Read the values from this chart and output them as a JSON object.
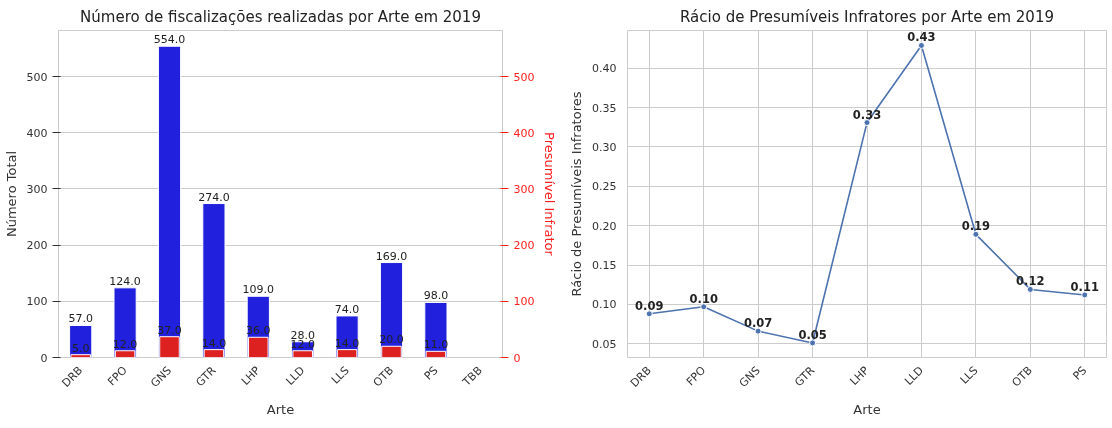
{
  "chart_data": [
    {
      "type": "bar",
      "title": "Número de fiscalizações realizadas por Arte em 2019",
      "xlabel": "Arte",
      "ylabel": "Número Total",
      "y2label": "Presumível Infrator",
      "categories": [
        "DRB",
        "FPO",
        "GNS",
        "GTR",
        "LHP",
        "LLD",
        "LLS",
        "OTB",
        "PS",
        "TBB"
      ],
      "series": [
        {
          "color": "#2020dd",
          "values": [
            57,
            124,
            554,
            274,
            109,
            28,
            74,
            169,
            98,
            null
          ],
          "value_labels": [
            "57.0",
            "124.0",
            "554.0",
            "274.0",
            "109.0",
            "28.0",
            "74.0",
            "169.0",
            "98.0",
            null
          ]
        },
        {
          "color": "#dd2020",
          "axis": "y2",
          "values": [
            5,
            12,
            37,
            14,
            36,
            12,
            14,
            20,
            11,
            null
          ],
          "value_labels": [
            "5.0",
            "12.0",
            "37.0",
            "14.0",
            "36.0",
            "12.0",
            "14.0",
            "20.0",
            "11.0",
            null
          ]
        }
      ],
      "ylim": [
        0,
        582
      ],
      "yticks": [
        0,
        100,
        200,
        300,
        400,
        500
      ],
      "y2lim": [
        0,
        582
      ],
      "y2ticks": [
        0,
        100,
        200,
        300,
        400,
        500
      ],
      "grid": "y"
    },
    {
      "type": "line",
      "title": "Rácio de Presumíveis Infratores por Arte em 2019",
      "xlabel": "Arte",
      "ylabel": "Rácio de Presumíveis Infratores",
      "categories": [
        "DRB",
        "FPO",
        "GNS",
        "GTR",
        "LHP",
        "LLD",
        "LLS",
        "OTB",
        "PS"
      ],
      "series": [
        {
          "color": "#4c72b0",
          "values": [
            0.088,
            0.097,
            0.066,
            0.051,
            0.331,
            0.429,
            0.189,
            0.119,
            0.112
          ],
          "value_labels": [
            "0.09",
            "0.10",
            "0.07",
            "0.05",
            "0.33",
            "0.43",
            "0.19",
            "0.12",
            "0.11"
          ]
        }
      ],
      "ylim": [
        0.0325,
        0.448
      ],
      "yticks": [
        {
          "value": 0.05,
          "label": "0.05"
        },
        {
          "value": 0.1,
          "label": "0.10"
        },
        {
          "value": 0.15,
          "label": "0.15"
        },
        {
          "value": 0.2,
          "label": "0.20"
        },
        {
          "value": 0.25,
          "label": "0.25"
        },
        {
          "value": 0.3,
          "label": "0.30"
        },
        {
          "value": 0.35,
          "label": "0.35"
        },
        {
          "value": 0.4,
          "label": "0.40"
        }
      ],
      "grid": true,
      "marker": "circle",
      "line_style": "solid"
    }
  ]
}
